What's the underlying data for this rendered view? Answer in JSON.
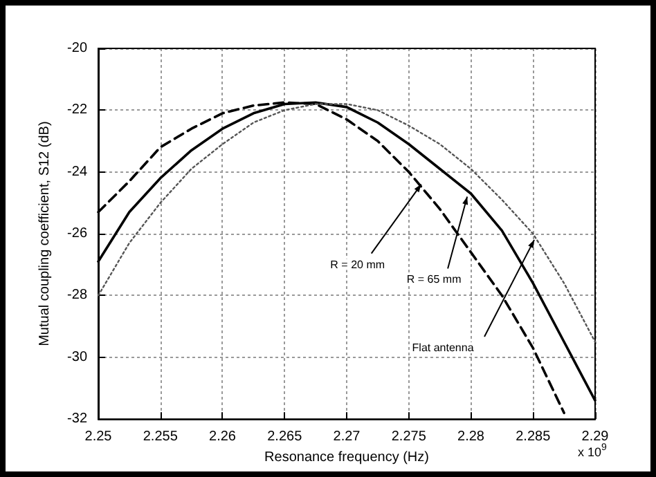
{
  "chart_data": {
    "type": "line",
    "xlabel": "Resonance frequency (Hz)",
    "ylabel": "Mutual coupling coefficient, S12 (dB)",
    "x": [
      2.25,
      2.2525,
      2.255,
      2.2575,
      2.26,
      2.2625,
      2.265,
      2.2675,
      2.27,
      2.2725,
      2.275,
      2.2775,
      2.28,
      2.2825,
      2.285,
      2.2875,
      2.29
    ],
    "series": [
      {
        "color": "#000000",
        "line_style": "dashed",
        "values": [
          -25.3,
          -24.3,
          -23.2,
          -22.6,
          -22.1,
          -21.85,
          -21.75,
          -21.8,
          -22.3,
          -23.0,
          -24.0,
          -25.2,
          -26.6,
          -28.0,
          -29.7,
          -31.8,
          null
        ]
      },
      {
        "color": "#000000",
        "line_style": "solid",
        "values": [
          -26.9,
          -25.3,
          -24.2,
          -23.3,
          -22.6,
          -22.1,
          -21.8,
          -21.75,
          -21.9,
          -22.4,
          -23.1,
          -23.9,
          -24.7,
          -25.9,
          -27.6,
          -29.5,
          -31.4
        ]
      },
      {
        "color": "#555555",
        "line_style": "dotted",
        "values": [
          -28.0,
          -26.3,
          -25.0,
          -23.9,
          -23.1,
          -22.4,
          -22.0,
          -21.8,
          -21.8,
          -22.0,
          -22.5,
          -23.1,
          -23.9,
          -24.9,
          -26.0,
          -27.6,
          -29.5
        ]
      }
    ],
    "xlim": [
      2.25,
      2.29
    ],
    "xticks": [
      2.25,
      2.255,
      2.26,
      2.265,
      2.27,
      2.275,
      2.28,
      2.285,
      2.29
    ],
    "ylim": [
      -32,
      -20
    ],
    "yticks": [
      -32,
      -30,
      -28,
      -26,
      -24,
      -22,
      -20
    ],
    "annotations": [
      {
        "text": "R = 20 mm",
        "x": 2.276,
        "y": -24.4
      },
      {
        "text": "R = 65 mm",
        "x": 2.2797,
        "y": -24.8
      },
      {
        "text": "Flat antenna",
        "x": 2.2851,
        "y": -26.2
      },
      "x 10$^{9}$"
    ],
    "grid": true,
    "marker": "none"
  }
}
